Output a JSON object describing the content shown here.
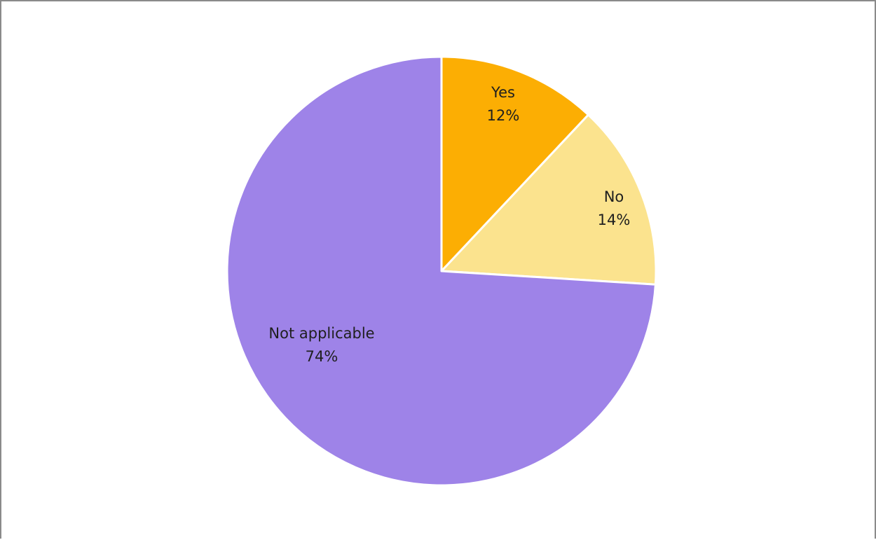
{
  "chart_data": {
    "type": "pie",
    "slices": [
      {
        "label": "Yes",
        "value": 12,
        "percent_label": "12%",
        "color": "#FCAE03"
      },
      {
        "label": "No",
        "value": 14,
        "percent_label": "14%",
        "color": "#FBE38E"
      },
      {
        "label": "Not applicable",
        "value": 74,
        "percent_label": "74%",
        "color": "#9E83E8"
      }
    ],
    "start_angle": "12 o'clock",
    "direction": "clockwise",
    "legend": "none"
  }
}
